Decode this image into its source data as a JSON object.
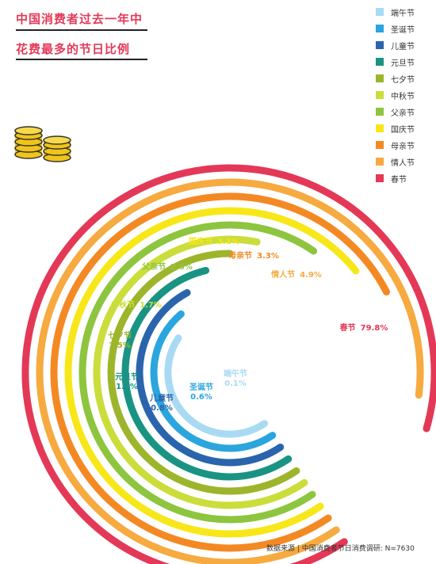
{
  "title": {
    "line1": "中国消费者过去一年中",
    "line2": "花费最多的节日比例"
  },
  "source": "数据来源 | 中国消费者节日消费调研: N=7630",
  "chart_data": {
    "type": "radial-bar",
    "unit": "%",
    "series": [
      {
        "name": "端午节",
        "value": 0.1,
        "color": "#a9daf3"
      },
      {
        "name": "圣诞节",
        "value": 0.6,
        "color": "#2ba5de"
      },
      {
        "name": "儿童节",
        "value": 0.8,
        "color": "#2a64ad"
      },
      {
        "name": "元旦节",
        "value": 1.2,
        "color": "#1a9482"
      },
      {
        "name": "七夕节",
        "value": 1.5,
        "color": "#9db52b"
      },
      {
        "name": "中秋节",
        "value": 1.7,
        "color": "#cadd3b"
      },
      {
        "name": "父亲节",
        "value": 2.6,
        "color": "#8dc53f"
      },
      {
        "name": "国庆节",
        "value": 3.1,
        "color": "#f8e718"
      },
      {
        "name": "母亲节",
        "value": 3.3,
        "color": "#f48924"
      },
      {
        "name": "情人节",
        "value": 4.9,
        "color": "#f6aa40"
      },
      {
        "name": "春节",
        "value": 79.8,
        "color": "#e43857"
      }
    ],
    "labels": [
      {
        "name": "端午节",
        "text": "端午节",
        "value_text": "0.1%",
        "color": "#a9daf3"
      },
      {
        "name": "圣诞节",
        "text": "圣诞节",
        "value_text": "0.6%",
        "color": "#2ba5de"
      },
      {
        "name": "儿童节",
        "text": "儿童节",
        "value_text": "0.8%",
        "color": "#2a64ad"
      },
      {
        "name": "元旦节",
        "text": "元旦节",
        "value_text": "1.2%",
        "color": "#1a9482"
      },
      {
        "name": "七夕节",
        "text": "七夕节",
        "value_text": "1.5%",
        "color": "#9db52b"
      },
      {
        "name": "中秋节",
        "text": "中秋节",
        "value_text": "1.7%",
        "color": "#cadd3b"
      },
      {
        "name": "父亲节",
        "text": "父亲节",
        "value_text": "2.6%",
        "color": "#8dc53f"
      },
      {
        "name": "国庆节",
        "text": "国庆节",
        "value_text": "3.1%",
        "color": "#f8e718"
      },
      {
        "name": "母亲节",
        "text": "母亲节",
        "value_text": "3.3%",
        "color": "#f48924"
      },
      {
        "name": "情人节",
        "text": "情人节",
        "value_text": "4.9%",
        "color": "#f6aa40"
      },
      {
        "name": "春节",
        "text": "春节",
        "value_text": "79.8%",
        "color": "#e43857"
      }
    ],
    "legend": {
      "position": "top-right",
      "items": [
        "端午节",
        "圣诞节",
        "儿童节",
        "元旦节",
        "七夕节",
        "中秋节",
        "父亲节",
        "国庆节",
        "母亲节",
        "情人节",
        "春节"
      ]
    }
  },
  "icons": {
    "decoration": "coin-stack-icon"
  }
}
